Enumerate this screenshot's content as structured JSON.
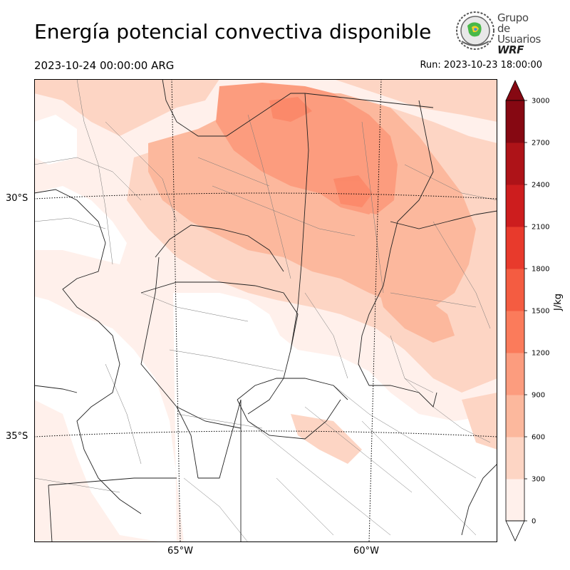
{
  "title": "Energía potencial convectiva disponible",
  "valid_time": "2023-10-24 00:00:00 ARG",
  "run_time": "Run: 2023-10-23 18:00:00",
  "logo": {
    "line1": "Grupo de",
    "line2": "Usuarios",
    "line3": "WRF",
    "icon": "wrf-globe-seal-icon"
  },
  "map": {
    "lat_labels": [
      "30°S",
      "35°S"
    ],
    "lon_labels": [
      "65°W",
      "60°W"
    ],
    "background": "#ffffff",
    "border_color": "#222222"
  },
  "colorbar": {
    "units": "J/kg",
    "ticks": [
      "0",
      "300",
      "600",
      "900",
      "1200",
      "1500",
      "1800",
      "2100",
      "2400",
      "2700",
      "3000"
    ],
    "colors": [
      "#fff0eb",
      "#fdd5c4",
      "#fcb89d",
      "#fc9c7e",
      "#fb7b5b",
      "#f45c41",
      "#e83a2c",
      "#cd1d1e",
      "#ae1318",
      "#860812"
    ],
    "extend": "both"
  },
  "chart_data": {
    "type": "heatmap",
    "title": "Energía potencial convectiva disponible",
    "variable": "CAPE",
    "units": "J/kg",
    "levels": [
      0,
      300,
      600,
      900,
      1200,
      1500,
      1800,
      2100,
      2400,
      2700,
      3000
    ],
    "lat_ticks": [
      "30°S",
      "35°S"
    ],
    "lon_ticks": [
      "65°W",
      "60°W"
    ],
    "max_region_value_range": [
      900,
      1200
    ]
  }
}
